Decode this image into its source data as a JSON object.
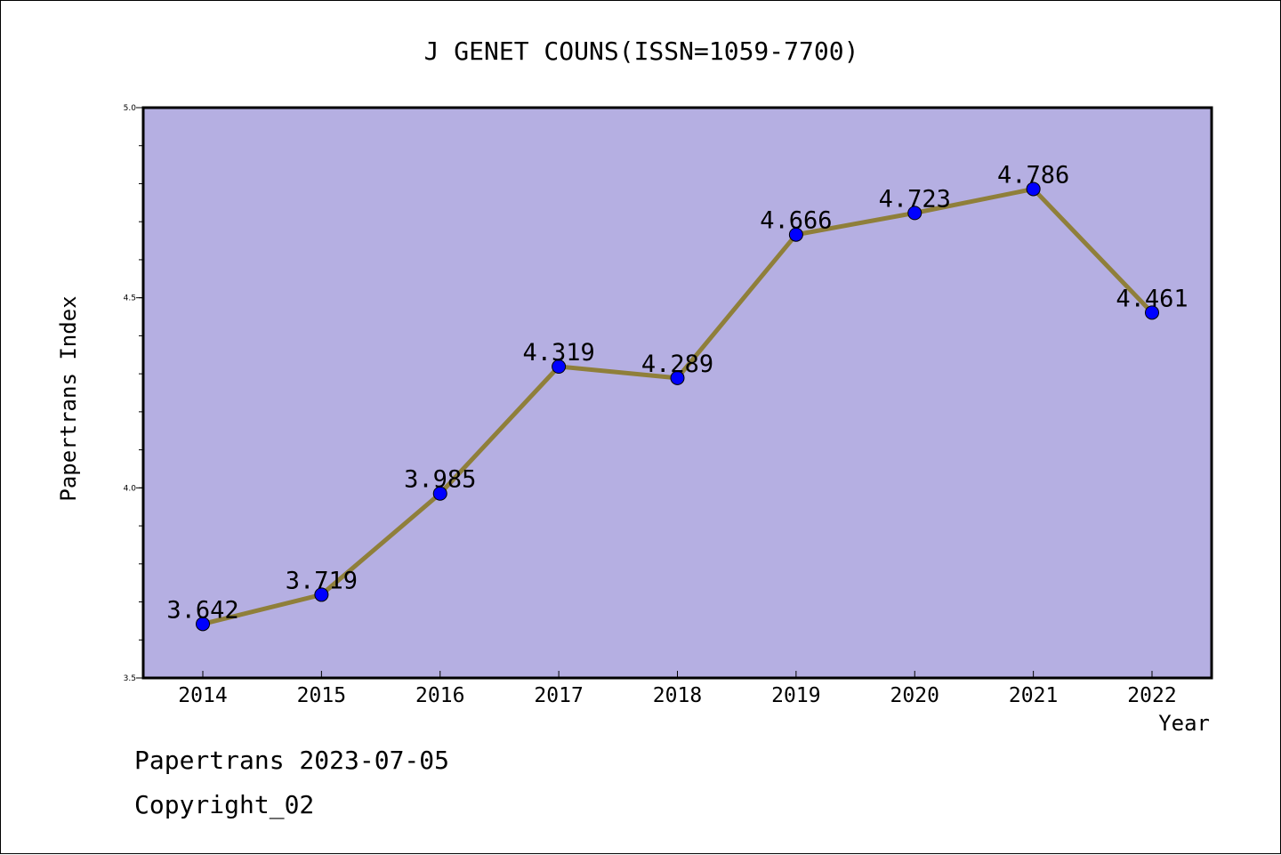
{
  "chart_data": {
    "type": "line",
    "title": "J GENET COUNS(ISSN=1059-7700)",
    "xlabel": "Year",
    "ylabel": "Papertrans Index",
    "categories": [
      "2014",
      "2015",
      "2016",
      "2017",
      "2018",
      "2019",
      "2020",
      "2021",
      "2022"
    ],
    "values": [
      3.642,
      3.719,
      3.985,
      4.319,
      4.289,
      4.666,
      4.723,
      4.786,
      4.461
    ],
    "value_labels": [
      "3.642",
      "3.719",
      "3.985",
      "4.319",
      "4.289",
      "4.666",
      "4.723",
      "4.786",
      "4.461"
    ],
    "ylim": [
      3.5,
      5.0
    ],
    "yticks": [
      "3.5",
      "4.0",
      "4.5",
      "5.0"
    ],
    "grid": false,
    "colors": {
      "plot_background": "#b5afe2",
      "line": "#8f7f3a",
      "marker": "#0000ff"
    }
  },
  "footer": {
    "line1": "Papertrans 2023-07-05",
    "line2": "Copyright_02"
  }
}
